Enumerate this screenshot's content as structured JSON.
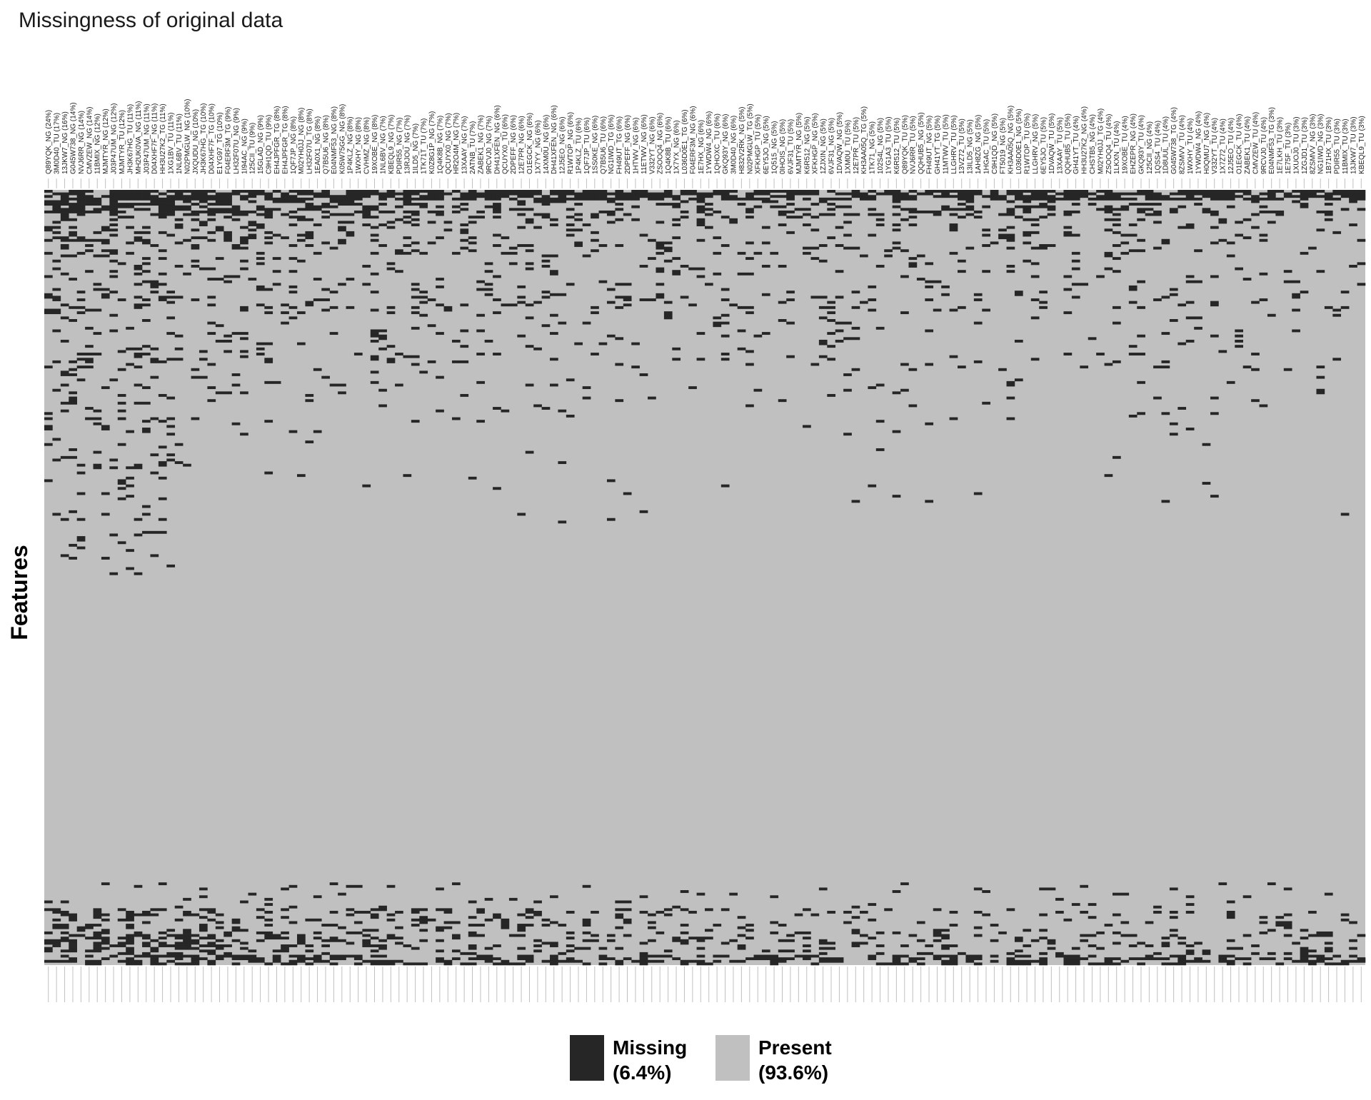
{
  "chart_data": {
    "type": "heatmap",
    "title": "Missingness of original data",
    "ylabel": "Features",
    "xlabel": "",
    "n_rows": 300,
    "colors": {
      "missing": "#262626",
      "present": "#c0c0c0",
      "tick": "#c0c0c0"
    },
    "legend": {
      "position": "bottom",
      "items": [
        {
          "label": "Missing",
          "percent": "(6.4%)",
          "color": "#262626"
        },
        {
          "label": "Present",
          "percent": "(93.6%)",
          "color": "#c0c0c0"
        }
      ]
    },
    "columns": [
      "Q89YQK_NG (24%)",
      "3M0D40_TU (17%)",
      "13JKW7_NG (16%)",
      "G045W738_NG (14%)",
      "NVJ6RR_NG (14%)",
      "CMVZEW_NG (14%)",
      "11BMIX_NG (12%)",
      "MJMTYR_NG (12%)",
      "J03P47UM_NG (12%)",
      "MJMTYR_TU (12%)",
      "JH3K67HG_TU (11%)",
      "MH2UK0VA_NG (11%)",
      "J03P47UM_NG (11%)",
      "D04XHF7F_NG (11%)",
      "HH3U27K2_TG (11%)",
      "1XG1BV_TU (11%)",
      "1NL6BV_TU (11%)",
      "N02PMGLW_NG (10%)",
      "JXQUDU_NG (10%)",
      "JH3K67HG_TG (10%)",
      "D04XHF7F_TG (10%)",
      "E1YG97_TG (10%)",
      "F04ERF3M_TG (9%)",
      "LH32F07U_NG (9%)",
      "1I94AC_NG (9%)",
      "125CII_TU (9%)",
      "15GLAD_NG (9%)",
      "C9H1QD_TU (9%)",
      "EH4JPFGR_TG (8%)",
      "EH4JPFGR_TG (8%)",
      "1QF7JP_NG (8%)",
      "M02YH0JJ_NG (8%)",
      "LH32F07U_TG (8%)",
      "1EA0X1_NG (8%)",
      "Q7B5U6_NG (8%)",
      "E04NMF53_NG (8%)",
      "K05W75GG_NG (8%)",
      "1P4KLZ_NG (8%)",
      "1WXHY_NG (8%)",
      "CVHMZ_NG (8%)",
      "19XOBE_NG (8%)",
      "1NL6BV_NG (7%)",
      "KBEQL9_NG (7%)",
      "PDIR55_NG (7%)",
      "13RJOU_NG (7%)",
      "1ILD5_NG (7%)",
      "1TK71T_TU (7%)",
      "K0Z8G1P_NG (7%)",
      "1Q4K8B_NG (7%)",
      "QCUYX0_NG (7%)",
      "HR2O4M_NG (7%)",
      "13XAAY_NG (7%)",
      "2ATNB_TU (7%)",
      "ZABEK1_NG (7%)",
      "9RCVJ0_NG (7%)",
      "DH41XFEN_NG (6%)",
      "QCUYX0_TU (6%)",
      "2DPEFF_NG (6%)",
      "12E7PR_NG (6%)",
      "O1EGCK_NG (6%)",
      "1X7YY_NG (6%)",
      "14XM0U_NG (6%)",
      "DH41XFEN_NG (6%)",
      "12J5EO_NG (6%)",
      "R1WTOP_NG (6%)",
      "1P4KLZ_TU (6%)",
      "1QF7JP_TU (6%)",
      "1SS0KE_NG (6%)",
      "Q7B5U6_TU (6%)",
      "NG1IWD_TG (6%)",
      "FH49UT_TG (6%)",
      "2DPEFF_NG (6%)",
      "1HTWV_NG (6%)",
      "11ETWV_NG (6%)",
      "V332YT_NG (6%)",
      "ZSOOQ4_NG (6%)",
      "1Q4K8B_TU (6%)",
      "1X7YX_NG (6%)",
      "L036D0E1_TG (6%)",
      "F04ERF3M_NG (6%)",
      "1E7HX_NG (6%)",
      "1YWDW4_NG (6%)",
      "1QHOXC_TU (6%)",
      "GKQ93Y_NG (6%)",
      "3M0D40_NG (6%)",
      "H832V2RK_NG (5%)",
      "N02PMGLW_TG (5%)",
      "XFKHGP_TU (5%)",
      "6EY5JO_NG (5%)",
      "1Q515_NG (5%)",
      "0IHOIS_NG (5%)",
      "6VJF31_TU (5%)",
      "MJMTYR_NG (5%)",
      "K6R512_NG (5%)",
      "XFKHGP_NG (5%)",
      "1ZJXIN_NG (5%)",
      "6VJF31_NG (5%)",
      "1DVAQW_NG (5%)",
      "1XM0U_TU (5%)",
      "12E7PR_TU (5%)",
      "KH3AA05Q_TG (5%)",
      "1TK71_NG (5%)",
      "102S4L_NG (5%)",
      "1YG1A3_TU (5%)",
      "K6R512_TU (5%)",
      "Q89YQK_TU (5%)",
      "NVJ6RR_TU (5%)",
      "QQHUB5_NG (5%)",
      "FH49UT_NG (5%)",
      "GH41YT_TG (5%)",
      "11MTWV_TU (5%)",
      "LLGHRV_TU (5%)",
      "13VZ72_TU (5%)",
      "13ILD5_NG (5%)",
      "1AH8ZG_NG (5%)",
      "1HGAC_TU (5%)",
      "C9H1QD_NG (5%)",
      "FT5019_NG (5%)",
      "KH3AA05Q_NG (5%)",
      "L036D0E1_NG (5%)",
      "R1WTOP_TU (5%)",
      "LLGHRV_NG (5%)",
      "6EY5JO_TU (5%)",
      "1DVAQW_TU (5%)",
      "13XAAY_TU (5%)",
      "QQHUB5_TU (5%)",
      "GH41YT_TU (4%)",
      "HH3U27K2_NG (4%)",
      "CHSTB5_NG (4%)",
      "M02YH0JJ_TG (4%)",
      "ZSOOQ4_TU (4%)",
      "1LKXN_TU (4%)",
      "19XOBE_TU (4%)",
      "EHZEPR_NG (4%)",
      "GKQ93Y_TU (4%)",
      "125CII_NG (4%)",
      "1QSS4_TU (4%)",
      "1D8UUL_TU (4%)",
      "G045W738_TG (4%)",
      "8ZSMVV_TU (4%)",
      "1WXHY_TU (4%)",
      "1YWDW4_NG (4%)",
      "H0QMU7_NG (4%)",
      "V332YT_TU (4%)",
      "1X7Z72_TU (4%)",
      "12J5EO_TU (4%)",
      "O1EGCK_TU (4%)",
      "ZABEK1_TU (4%)",
      "CMVZEW_TU (4%)",
      "9RCVJ0_TU (4%)",
      "E04NMF53_TG (3%)",
      "1E7LKH_TU (3%)",
      "1E75F_TU (3%)",
      "1XUOJ0_TU (3%)",
      "1ZGJD1_TU (3%)",
      "8ZSMVV_NG (3%)",
      "NG1IWD_NG (3%)",
      "1B71HX_TU (3%)",
      "PDIR55_TU (3%)",
      "11BMIX_TU (3%)",
      "13JKW7_TU (3%)",
      "KBEQL9_TU (3%)"
    ]
  }
}
